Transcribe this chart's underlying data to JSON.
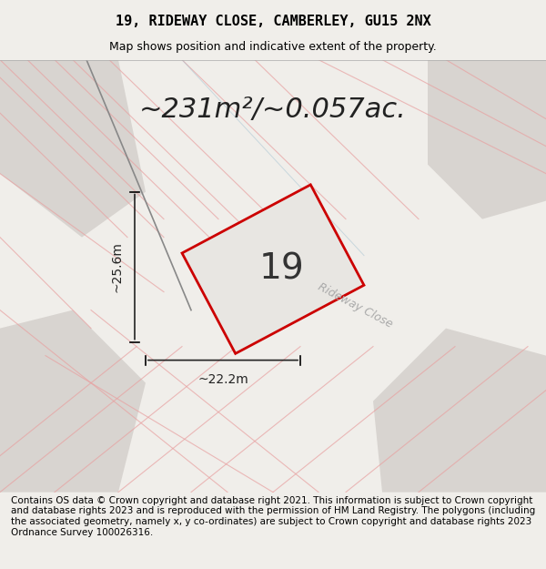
{
  "title_line1": "19, RIDEWAY CLOSE, CAMBERLEY, GU15 2NX",
  "title_line2": "Map shows position and indicative extent of the property.",
  "area_label": "~231m²/~0.057ac.",
  "plot_number": "19",
  "dim_width": "~22.2m",
  "dim_height": "~25.6m",
  "road_label": "Rideway Close",
  "footer_text": "Contains OS data © Crown copyright and database right 2021. This information is subject to Crown copyright and database rights 2023 and is reproduced with the permission of HM Land Registry. The polygons (including the associated geometry, namely x, y co-ordinates) are subject to Crown copyright and database rights 2023 Ordnance Survey 100026316.",
  "bg_color": "#f5f4f2",
  "map_bg": "#e8e6e2",
  "plot_fill": "#e8e6e2",
  "plot_edge": "#cc0000",
  "road_fill": "#d0ccc8",
  "title_fontsize": 11,
  "subtitle_fontsize": 9,
  "area_fontsize": 22,
  "plot_num_fontsize": 28,
  "dim_fontsize": 10,
  "footer_fontsize": 7.5
}
